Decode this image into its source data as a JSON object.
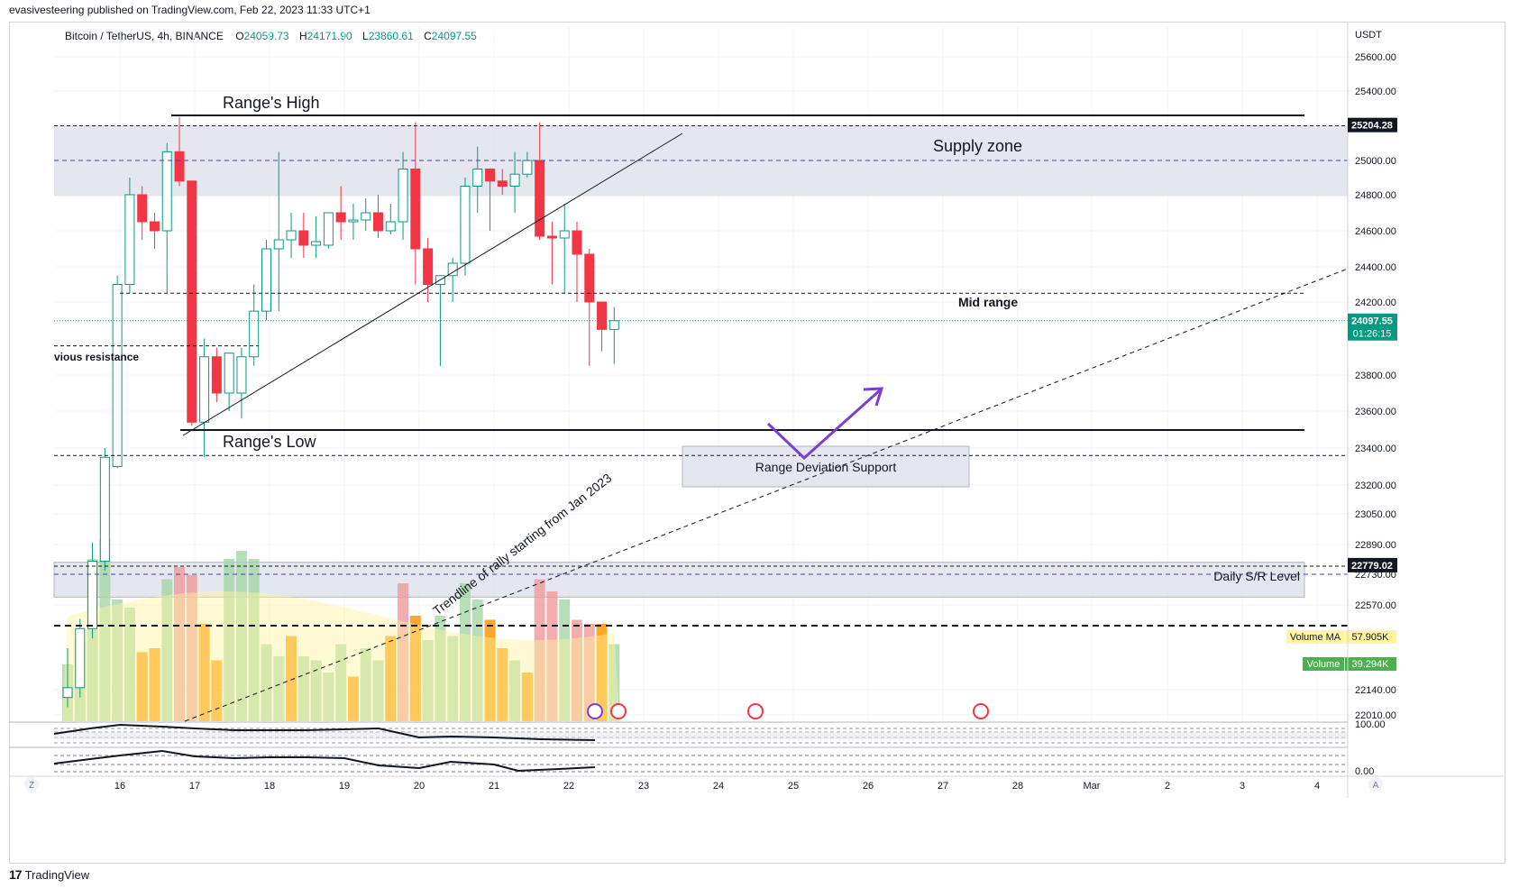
{
  "header": {
    "published_line": "evasivesteering published on TradingView.com, Feb 22, 2023 11:33 UTC+1"
  },
  "symbol": {
    "name": "Bitcoin / TetherUS, 4h, BINANCE",
    "o_label": "O",
    "o_value": "24059.73",
    "h_label": "H",
    "h_value": "24171.90",
    "l_label": "L",
    "l_value": "23860.61",
    "c_label": "C",
    "c_value": "24097.55"
  },
  "footer": {
    "brand": "TradingView",
    "logo": "17"
  },
  "colors": {
    "up": "#089981",
    "down": "#f23645",
    "vol_up": "#a5d6a7",
    "vol_down": "#ef9a9a",
    "vol_orange": "#ff9800",
    "vol_ma": "#fff59d",
    "zone": "#d1d4dc"
  },
  "chart_data": {
    "type": "candlestick",
    "currency": "USDT",
    "ylim": [
      21950,
      25750
    ],
    "y_ticks": [
      "25600.00",
      "25400.00",
      "25000.00",
      "24800.00",
      "24600.00",
      "24400.00",
      "24200.00",
      "23800.00",
      "23600.00",
      "23400.00",
      "23200.00",
      "23050.00",
      "22890.00",
      "22730.00",
      "22570.00",
      "22140.00",
      "22010.00"
    ],
    "x_ticks": [
      "16",
      "17",
      "18",
      "19",
      "20",
      "21",
      "22",
      "23",
      "24",
      "25",
      "26",
      "27",
      "28",
      "Mar",
      "2",
      "3",
      "4"
    ],
    "price_badges": [
      {
        "label": "25204.28",
        "value": 25204.28,
        "style": "dark"
      },
      {
        "label": "24097.55",
        "sub": "01:26:15",
        "value": 24097.55,
        "style": "green"
      },
      {
        "label": "22779.02",
        "value": 22779.02,
        "style": "dark"
      }
    ],
    "candles": [
      {
        "o": 22100,
        "h": 22350,
        "l": 22050,
        "c": 22150
      },
      {
        "o": 22150,
        "h": 22500,
        "l": 22100,
        "c": 22450
      },
      {
        "o": 22450,
        "h": 22900,
        "l": 22400,
        "c": 22800
      },
      {
        "o": 22800,
        "h": 23400,
        "l": 22750,
        "c": 23350
      },
      {
        "o": 23300,
        "h": 24350,
        "l": 23290,
        "c": 24300
      },
      {
        "o": 24300,
        "h": 24900,
        "l": 24250,
        "c": 24800
      },
      {
        "o": 24800,
        "h": 24850,
        "l": 24550,
        "c": 24650
      },
      {
        "o": 24650,
        "h": 24700,
        "l": 24500,
        "c": 24600
      },
      {
        "o": 24600,
        "h": 25100,
        "l": 24250,
        "c": 25050
      },
      {
        "o": 25050,
        "h": 25250,
        "l": 24850,
        "c": 24880
      },
      {
        "o": 24880,
        "h": 24880,
        "l": 23520,
        "c": 23540
      },
      {
        "o": 23540,
        "h": 24000,
        "l": 23350,
        "c": 23900
      },
      {
        "o": 23900,
        "h": 23950,
        "l": 23650,
        "c": 23700
      },
      {
        "o": 23700,
        "h": 23900,
        "l": 23600,
        "c": 23920
      },
      {
        "o": 23700,
        "h": 23950,
        "l": 23560,
        "c": 23900
      },
      {
        "o": 23900,
        "h": 24300,
        "l": 23850,
        "c": 24150
      },
      {
        "o": 24150,
        "h": 24550,
        "l": 24100,
        "c": 24500
      },
      {
        "o": 24500,
        "h": 25050,
        "l": 24150,
        "c": 24550
      },
      {
        "o": 24550,
        "h": 24700,
        "l": 24450,
        "c": 24600
      },
      {
        "o": 24600,
        "h": 24700,
        "l": 24450,
        "c": 24520
      },
      {
        "o": 24520,
        "h": 24680,
        "l": 24450,
        "c": 24540
      },
      {
        "o": 24520,
        "h": 24700,
        "l": 24500,
        "c": 24700
      },
      {
        "o": 24700,
        "h": 24850,
        "l": 24550,
        "c": 24650
      },
      {
        "o": 24650,
        "h": 24750,
        "l": 24550,
        "c": 24660
      },
      {
        "o": 24660,
        "h": 24780,
        "l": 24600,
        "c": 24700
      },
      {
        "o": 24700,
        "h": 24800,
        "l": 24560,
        "c": 24600
      },
      {
        "o": 24600,
        "h": 24750,
        "l": 24580,
        "c": 24650
      },
      {
        "o": 24650,
        "h": 25050,
        "l": 24550,
        "c": 24950
      },
      {
        "o": 24950,
        "h": 25220,
        "l": 24300,
        "c": 24500
      },
      {
        "o": 24500,
        "h": 24560,
        "l": 24200,
        "c": 24300
      },
      {
        "o": 24300,
        "h": 24350,
        "l": 23850,
        "c": 24350
      },
      {
        "o": 24350,
        "h": 24450,
        "l": 24200,
        "c": 24420
      },
      {
        "o": 24420,
        "h": 24900,
        "l": 24350,
        "c": 24850
      },
      {
        "o": 24850,
        "h": 25080,
        "l": 24700,
        "c": 24950
      },
      {
        "o": 24950,
        "h": 24950,
        "l": 24600,
        "c": 24880
      },
      {
        "o": 24880,
        "h": 24950,
        "l": 24800,
        "c": 24850
      },
      {
        "o": 24850,
        "h": 25050,
        "l": 24700,
        "c": 24920
      },
      {
        "o": 24920,
        "h": 25050,
        "l": 24900,
        "c": 25000
      },
      {
        "o": 25000,
        "h": 25220,
        "l": 24550,
        "c": 24570
      },
      {
        "o": 24570,
        "h": 24650,
        "l": 24300,
        "c": 24560
      },
      {
        "o": 24560,
        "h": 24750,
        "l": 24250,
        "c": 24600
      },
      {
        "o": 24600,
        "h": 24650,
        "l": 24200,
        "c": 24470
      },
      {
        "o": 24470,
        "h": 24500,
        "l": 23850,
        "c": 24200
      },
      {
        "o": 24200,
        "h": 24200,
        "l": 23930,
        "c": 24050
      },
      {
        "o": 24050,
        "h": 24171.9,
        "l": 23860.61,
        "c": 24097.55
      }
    ],
    "volume": [
      {
        "v": 14,
        "c": "#a5d6a7"
      },
      {
        "v": 20,
        "c": "#a5d6a7"
      },
      {
        "v": 40,
        "c": "#a5d6a7"
      },
      {
        "v": 45,
        "c": "#a5d6a7"
      },
      {
        "v": 30,
        "c": "#a5d6a7"
      },
      {
        "v": 28,
        "c": "#a5d6a7"
      },
      {
        "v": 17,
        "c": "#ff9800"
      },
      {
        "v": 18,
        "c": "#ff9800"
      },
      {
        "v": 35,
        "c": "#a5d6a7"
      },
      {
        "v": 38,
        "c": "#ef9a9a"
      },
      {
        "v": 36,
        "c": "#ef9a9a"
      },
      {
        "v": 24,
        "c": "#ff9800"
      },
      {
        "v": 15,
        "c": "#ff9800"
      },
      {
        "v": 40,
        "c": "#a5d6a7"
      },
      {
        "v": 42,
        "c": "#a5d6a7"
      },
      {
        "v": 40,
        "c": "#a5d6a7"
      },
      {
        "v": 19,
        "c": "#a5d6a7"
      },
      {
        "v": 16,
        "c": "#a5d6a7"
      },
      {
        "v": 21,
        "c": "#ff9800"
      },
      {
        "v": 16,
        "c": "#a5d6a7"
      },
      {
        "v": 15,
        "c": "#a5d6a7"
      },
      {
        "v": 12,
        "c": "#a5d6a7"
      },
      {
        "v": 19,
        "c": "#a5d6a7"
      },
      {
        "v": 11,
        "c": "#ff9800"
      },
      {
        "v": 18,
        "c": "#a5d6a7"
      },
      {
        "v": 15,
        "c": "#a5d6a7"
      },
      {
        "v": 21,
        "c": "#ff9800"
      },
      {
        "v": 34,
        "c": "#ef9a9a"
      },
      {
        "v": 26,
        "c": "#ff9800"
      },
      {
        "v": 20,
        "c": "#a5d6a7"
      },
      {
        "v": 26,
        "c": "#a5d6a7"
      },
      {
        "v": 21,
        "c": "#a5d6a7"
      },
      {
        "v": 34,
        "c": "#a5d6a7"
      },
      {
        "v": 30,
        "c": "#a5d6a7"
      },
      {
        "v": 25,
        "c": "#ff9800"
      },
      {
        "v": 18,
        "c": "#ff9800"
      },
      {
        "v": 15,
        "c": "#a5d6a7"
      },
      {
        "v": 12,
        "c": "#ff9800"
      },
      {
        "v": 35,
        "c": "#ef9a9a"
      },
      {
        "v": 32,
        "c": "#ef9a9a"
      },
      {
        "v": 30,
        "c": "#a5d6a7"
      },
      {
        "v": 25,
        "c": "#ef9a9a"
      },
      {
        "v": 24,
        "c": "#ef9a9a"
      },
      {
        "v": 24,
        "c": "#ff9800"
      },
      {
        "v": 19,
        "c": "#a5d6a7"
      }
    ],
    "volume_ma_label": "Volume MA",
    "volume_ma_value": "57.905K",
    "volume_label": "Volume",
    "volume_value": "39.294K",
    "oscillator": {
      "top_tick": "100.00",
      "bottom_tick": "0.00"
    },
    "annotations": {
      "range_high": "Range's High",
      "range_low": "Range's Low",
      "supply_zone": "Supply zone",
      "mid_range": "Mid range",
      "previous_resistance": "vious resistance",
      "deviation_support": "Range Deviation Support",
      "daily_sr": "Daily S/R Level",
      "trendline": "Trendline of rally starting from Jan 2023"
    },
    "levels": {
      "range_high": 25260,
      "supply_top": 25200,
      "supply_mid": 25000,
      "supply_bottom": 24850,
      "mid_range": 24250,
      "prev_resistance": 23960,
      "range_low": 23510,
      "below_low": 23360,
      "daily_sr_top": 22780,
      "daily_sr_mid": 22730,
      "daily_sr_bottom": 22700,
      "black_dash": 22540
    },
    "grid": true,
    "axis_bottom_left": "Z",
    "axis_bottom_right": "A"
  }
}
